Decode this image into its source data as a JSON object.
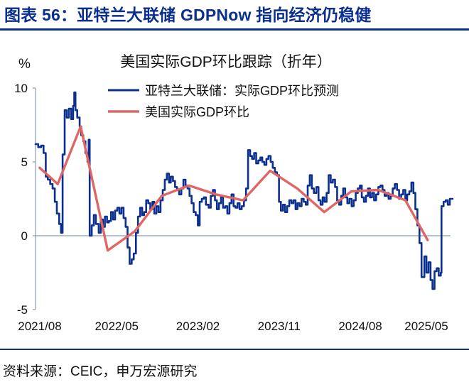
{
  "figure": {
    "title": "图表 56：亚特兰大联储 GDPNow 指向经济仍稳健",
    "source": "资料来源：CEIC，申万宏源研究"
  },
  "chart_data": {
    "type": "line",
    "title": "美国实际GDP环比跟踪（折年）",
    "ylabel": "%",
    "ylim": [
      -5,
      10
    ],
    "yticks": [
      10,
      5,
      0,
      -5
    ],
    "xlim": [
      "2021-08",
      "2025-06"
    ],
    "xticks": [
      "2021/08",
      "2022/05",
      "2023/02",
      "2023/11",
      "2024/08",
      "2025/05"
    ],
    "grid": false,
    "legend_position": "top-center",
    "series": [
      {
        "name": "亚特兰大联储：实际GDP环比预测",
        "color": "#0a2f8f",
        "style": "step",
        "points": [
          [
            "2021-08-01",
            6.2
          ],
          [
            "2021-08-10",
            6.0
          ],
          [
            "2021-08-20",
            6.1
          ],
          [
            "2021-08-28",
            5.6
          ],
          [
            "2021-09-05",
            4.0
          ],
          [
            "2021-09-12",
            3.8
          ],
          [
            "2021-09-20",
            3.5
          ],
          [
            "2021-09-28",
            3.2
          ],
          [
            "2021-10-05",
            2.3
          ],
          [
            "2021-10-12",
            1.5
          ],
          [
            "2021-10-20",
            0.8
          ],
          [
            "2021-10-26",
            0.2
          ],
          [
            "2021-11-01",
            5.5
          ],
          [
            "2021-11-08",
            8.5
          ],
          [
            "2021-11-15",
            8.0
          ],
          [
            "2021-11-22",
            8.6
          ],
          [
            "2021-11-30",
            7.9
          ],
          [
            "2021-12-06",
            8.8
          ],
          [
            "2021-12-10",
            9.7
          ],
          [
            "2021-12-14",
            8.5
          ],
          [
            "2021-12-20",
            8.0
          ],
          [
            "2021-12-28",
            7.4
          ],
          [
            "2022-01-03",
            6.8
          ],
          [
            "2022-01-10",
            6.4
          ],
          [
            "2022-01-17",
            5.6
          ],
          [
            "2022-01-24",
            5.0
          ],
          [
            "2022-01-28",
            6.5
          ],
          [
            "2022-02-01",
            0.0
          ],
          [
            "2022-02-08",
            0.7
          ],
          [
            "2022-02-15",
            1.4
          ],
          [
            "2022-02-22",
            0.8
          ],
          [
            "2022-03-01",
            0.2
          ],
          [
            "2022-03-08",
            1.1
          ],
          [
            "2022-03-15",
            0.6
          ],
          [
            "2022-03-22",
            1.3
          ],
          [
            "2022-03-29",
            0.9
          ],
          [
            "2022-04-05",
            1.0
          ],
          [
            "2022-04-12",
            1.6
          ],
          [
            "2022-04-19",
            1.1
          ],
          [
            "2022-04-26",
            1.7
          ],
          [
            "2022-05-03",
            1.9
          ],
          [
            "2022-05-10",
            1.5
          ],
          [
            "2022-05-17",
            1.9
          ],
          [
            "2022-05-24",
            1.2
          ],
          [
            "2022-05-31",
            0.6
          ],
          [
            "2022-06-07",
            -0.8
          ],
          [
            "2022-06-14",
            -1.9
          ],
          [
            "2022-06-21",
            -1.6
          ],
          [
            "2022-06-28",
            -1.2
          ],
          [
            "2022-07-05",
            0.2
          ],
          [
            "2022-07-12",
            1.3
          ],
          [
            "2022-07-19",
            1.9
          ],
          [
            "2022-07-26",
            1.4
          ],
          [
            "2022-08-02",
            1.6
          ],
          [
            "2022-08-09",
            2.4
          ],
          [
            "2022-08-16",
            2.2
          ],
          [
            "2022-08-23",
            1.8
          ],
          [
            "2022-08-30",
            2.3
          ],
          [
            "2022-09-06",
            1.5
          ],
          [
            "2022-09-13",
            2.0
          ],
          [
            "2022-09-20",
            1.6
          ],
          [
            "2022-09-27",
            2.4
          ],
          [
            "2022-10-04",
            3.1
          ],
          [
            "2022-10-11",
            3.8
          ],
          [
            "2022-10-18",
            4.2
          ],
          [
            "2022-10-25",
            3.6
          ],
          [
            "2022-11-01",
            4.0
          ],
          [
            "2022-11-08",
            3.7
          ],
          [
            "2022-11-15",
            3.3
          ],
          [
            "2022-11-22",
            3.1
          ],
          [
            "2022-11-29",
            2.8
          ],
          [
            "2022-12-06",
            3.2
          ],
          [
            "2022-12-13",
            3.8
          ],
          [
            "2022-12-20",
            3.4
          ],
          [
            "2022-12-27",
            3.2
          ],
          [
            "2023-01-03",
            2.7
          ],
          [
            "2023-01-10",
            2.2
          ],
          [
            "2023-01-17",
            1.6
          ],
          [
            "2023-01-24",
            1.4
          ],
          [
            "2023-01-31",
            0.7
          ],
          [
            "2023-02-07",
            2.3
          ],
          [
            "2023-02-14",
            2.5
          ],
          [
            "2023-02-21",
            2.6
          ],
          [
            "2023-02-28",
            2.1
          ],
          [
            "2023-03-07",
            1.9
          ],
          [
            "2023-03-14",
            2.7
          ],
          [
            "2023-03-21",
            3.1
          ],
          [
            "2023-03-28",
            2.4
          ],
          [
            "2023-04-04",
            1.8
          ],
          [
            "2023-04-11",
            2.2
          ],
          [
            "2023-04-18",
            2.6
          ],
          [
            "2023-04-25",
            1.9
          ],
          [
            "2023-05-02",
            2.0
          ],
          [
            "2023-05-09",
            1.5
          ],
          [
            "2023-05-16",
            2.2
          ],
          [
            "2023-05-23",
            2.8
          ],
          [
            "2023-05-30",
            2.0
          ],
          [
            "2023-06-06",
            1.9
          ],
          [
            "2023-06-13",
            2.2
          ],
          [
            "2023-06-20",
            1.8
          ],
          [
            "2023-06-27",
            2.0
          ],
          [
            "2023-07-04",
            2.4
          ],
          [
            "2023-07-11",
            3.2
          ],
          [
            "2023-07-18",
            5.8
          ],
          [
            "2023-07-25",
            5.4
          ],
          [
            "2023-08-01",
            5.2
          ],
          [
            "2023-08-08",
            5.6
          ],
          [
            "2023-08-15",
            4.9
          ],
          [
            "2023-08-22",
            5.1
          ],
          [
            "2023-08-29",
            5.3
          ],
          [
            "2023-09-05",
            5.0
          ],
          [
            "2023-09-12",
            4.8
          ],
          [
            "2023-09-19",
            5.2
          ],
          [
            "2023-09-26",
            5.4
          ],
          [
            "2023-10-03",
            5.0
          ],
          [
            "2023-10-10",
            4.6
          ],
          [
            "2023-10-17",
            4.3
          ],
          [
            "2023-10-24",
            4.1
          ],
          [
            "2023-10-31",
            2.3
          ],
          [
            "2023-11-07",
            1.7
          ],
          [
            "2023-11-14",
            2.1
          ],
          [
            "2023-11-21",
            1.6
          ],
          [
            "2023-11-28",
            2.0
          ],
          [
            "2023-12-05",
            2.4
          ],
          [
            "2023-12-12",
            2.2
          ],
          [
            "2023-12-19",
            2.4
          ],
          [
            "2023-12-26",
            1.8
          ],
          [
            "2024-01-02",
            2.2
          ],
          [
            "2024-01-09",
            2.0
          ],
          [
            "2024-01-16",
            2.5
          ],
          [
            "2024-01-23",
            2.3
          ],
          [
            "2024-01-30",
            2.1
          ],
          [
            "2024-02-06",
            3.4
          ],
          [
            "2024-02-13",
            4.1
          ],
          [
            "2024-02-20",
            3.2
          ],
          [
            "2024-02-27",
            2.9
          ],
          [
            "2024-03-05",
            3.3
          ],
          [
            "2024-03-12",
            2.4
          ],
          [
            "2024-03-19",
            2.1
          ],
          [
            "2024-03-26",
            2.6
          ],
          [
            "2024-04-02",
            2.3
          ],
          [
            "2024-04-09",
            2.9
          ],
          [
            "2024-04-16",
            4.1
          ],
          [
            "2024-04-23",
            3.6
          ],
          [
            "2024-04-30",
            3.8
          ],
          [
            "2024-05-07",
            3.3
          ],
          [
            "2024-05-14",
            2.4
          ],
          [
            "2024-05-21",
            2.1
          ],
          [
            "2024-05-28",
            2.7
          ],
          [
            "2024-06-04",
            3.2
          ],
          [
            "2024-06-11",
            2.6
          ],
          [
            "2024-06-18",
            2.2
          ],
          [
            "2024-06-25",
            2.5
          ],
          [
            "2024-07-02",
            2.0
          ],
          [
            "2024-07-09",
            2.4
          ],
          [
            "2024-07-16",
            2.9
          ],
          [
            "2024-07-23",
            3.2
          ],
          [
            "2024-07-30",
            3.4
          ],
          [
            "2024-08-06",
            2.6
          ],
          [
            "2024-08-13",
            2.3
          ],
          [
            "2024-08-20",
            2.7
          ],
          [
            "2024-08-27",
            3.2
          ],
          [
            "2024-09-03",
            2.6
          ],
          [
            "2024-09-10",
            2.9
          ],
          [
            "2024-09-17",
            2.4
          ],
          [
            "2024-09-24",
            2.8
          ],
          [
            "2024-10-01",
            3.3
          ],
          [
            "2024-10-08",
            3.4
          ],
          [
            "2024-10-15",
            3.1
          ],
          [
            "2024-10-22",
            2.7
          ],
          [
            "2024-10-29",
            2.9
          ],
          [
            "2024-11-05",
            2.5
          ],
          [
            "2024-11-12",
            2.7
          ],
          [
            "2024-11-19",
            3.2
          ],
          [
            "2024-11-26",
            3.5
          ],
          [
            "2024-12-03",
            3.1
          ],
          [
            "2024-12-10",
            2.5
          ],
          [
            "2024-12-17",
            2.8
          ],
          [
            "2024-12-24",
            3.1
          ],
          [
            "2024-12-31",
            2.4
          ],
          [
            "2025-01-07",
            2.8
          ],
          [
            "2025-01-14",
            3.0
          ],
          [
            "2025-01-21",
            3.6
          ],
          [
            "2025-01-28",
            2.9
          ],
          [
            "2025-02-04",
            1.8
          ],
          [
            "2025-02-11",
            0.7
          ],
          [
            "2025-02-18",
            -0.5
          ],
          [
            "2025-02-25",
            -2.8
          ],
          [
            "2025-03-04",
            -1.4
          ],
          [
            "2025-03-11",
            -2.5
          ],
          [
            "2025-03-18",
            -1.8
          ],
          [
            "2025-03-25",
            -3.0
          ],
          [
            "2025-04-01",
            -3.6
          ],
          [
            "2025-04-08",
            -2.4
          ],
          [
            "2025-04-15",
            -2.2
          ],
          [
            "2025-04-22",
            -2.7
          ],
          [
            "2025-04-29",
            -2.5
          ],
          [
            "2025-05-01",
            2.0
          ],
          [
            "2025-05-08",
            2.3
          ],
          [
            "2025-05-15",
            2.4
          ],
          [
            "2025-05-22",
            2.1
          ],
          [
            "2025-05-29",
            2.5
          ]
        ]
      },
      {
        "name": "美国实际GDP环比",
        "color": "#e06666",
        "style": "line",
        "points": [
          [
            "2021-08-15",
            4.6
          ],
          [
            "2021-10-15",
            3.5
          ],
          [
            "2022-01-01",
            7.4
          ],
          [
            "2022-04-01",
            -1.0
          ],
          [
            "2022-07-01",
            0.3
          ],
          [
            "2022-10-01",
            2.7
          ],
          [
            "2023-01-01",
            3.4
          ],
          [
            "2023-04-01",
            2.8
          ],
          [
            "2023-07-01",
            2.4
          ],
          [
            "2023-10-01",
            4.4
          ],
          [
            "2024-01-01",
            3.2
          ],
          [
            "2024-04-01",
            1.6
          ],
          [
            "2024-07-01",
            3.0
          ],
          [
            "2024-10-01",
            3.1
          ],
          [
            "2025-01-01",
            2.4
          ],
          [
            "2025-03-15",
            -0.3
          ]
        ]
      }
    ]
  }
}
